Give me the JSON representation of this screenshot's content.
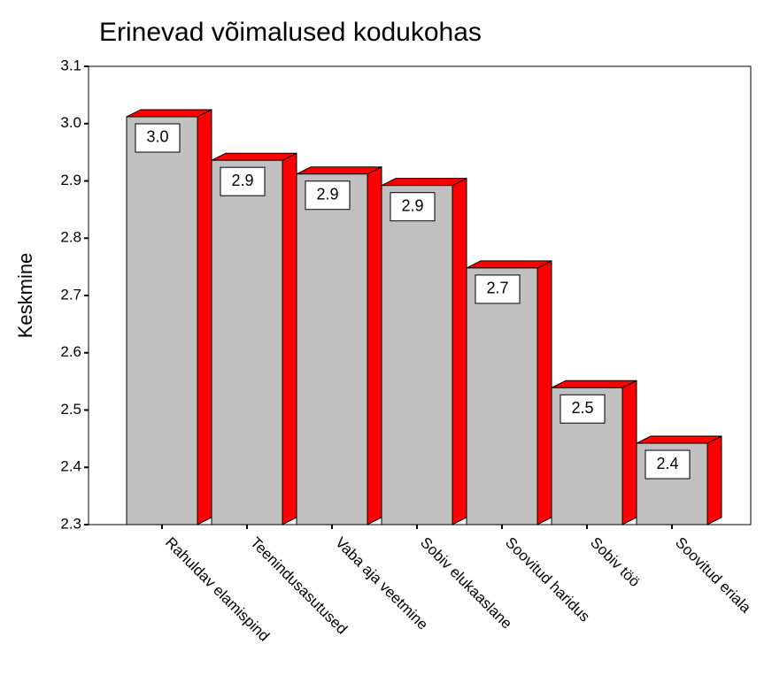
{
  "chart_data": {
    "type": "bar3d",
    "title": "Erinevad võimalused kodukohas",
    "y_label": "Keskmine",
    "categories": [
      "Rahuldav elamispind",
      "Teenindusasutused",
      "Vaba aja veetmine",
      "Sobiv elukaaslane",
      "Soovitud haridus",
      "Sobiv töö",
      "Soovitud eriala"
    ],
    "values": [
      3.012,
      2.936,
      2.912,
      2.892,
      2.748,
      2.539,
      2.442
    ],
    "value_labels": [
      "3.0",
      "2.9",
      "2.9",
      "2.9",
      "2.7",
      "2.5",
      "2.4"
    ],
    "front_color": "#c0c0c0",
    "side_color": "#ff0000",
    "ylim": [
      2.3,
      3.1
    ],
    "yticks": [
      2.3,
      2.4,
      2.5,
      2.6,
      2.7,
      2.8,
      2.9,
      {
        "value": 3,
        "label": "3.0"
      },
      3.1
    ]
  }
}
